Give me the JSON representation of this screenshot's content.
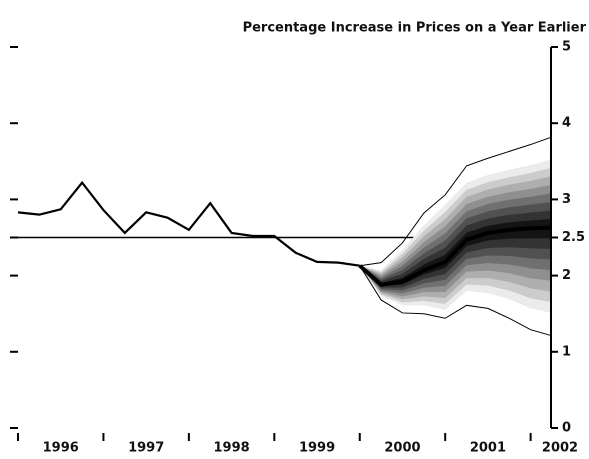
{
  "chart_data": {
    "type": "fan",
    "title": "Percentage Increase in Prices on a Year Earlier",
    "x": [
      1996.0,
      1996.25,
      1996.5,
      1996.75,
      1997.0,
      1997.25,
      1997.5,
      1997.75,
      1998.0,
      1998.25,
      1998.5,
      1998.75,
      1999.0,
      1999.25,
      1999.5,
      1999.75,
      2000.0
    ],
    "values": [
      2.83,
      2.8,
      2.87,
      3.22,
      2.86,
      2.56,
      2.83,
      2.76,
      2.6,
      2.95,
      2.56,
      2.52,
      2.52,
      2.3,
      2.18,
      2.17,
      2.13
    ],
    "color": "#000000",
    "fan": {
      "x": [
        2000.0,
        2000.25,
        2000.5,
        2000.75,
        2001.0,
        2001.25,
        2001.5,
        2001.75,
        2002.0,
        2002.25
      ],
      "central": [
        2.13,
        1.88,
        1.92,
        2.07,
        2.18,
        2.47,
        2.56,
        2.6,
        2.62,
        2.63
      ],
      "upper": [
        2.13,
        2.07,
        2.34,
        2.66,
        2.93,
        3.22,
        3.32,
        3.39,
        3.45,
        3.53
      ],
      "lower": [
        2.13,
        1.73,
        1.61,
        1.61,
        1.55,
        1.8,
        1.77,
        1.69,
        1.57,
        1.51
      ],
      "outer_upper": [
        2.13,
        2.17,
        2.43,
        2.82,
        3.06,
        3.44,
        3.54,
        3.63,
        3.72,
        3.82
      ],
      "outer_lower": [
        2.13,
        1.68,
        1.51,
        1.5,
        1.44,
        1.61,
        1.57,
        1.44,
        1.29,
        1.21
      ]
    },
    "reference_line": 2.5,
    "xlim": [
      1996,
      2002.25
    ],
    "xticks": [
      1996,
      1997,
      1998,
      1999,
      2000,
      2001,
      2002
    ],
    "ylim": [
      0,
      5
    ],
    "yticks": [
      0,
      1,
      2,
      2.5,
      3,
      4,
      5
    ]
  }
}
